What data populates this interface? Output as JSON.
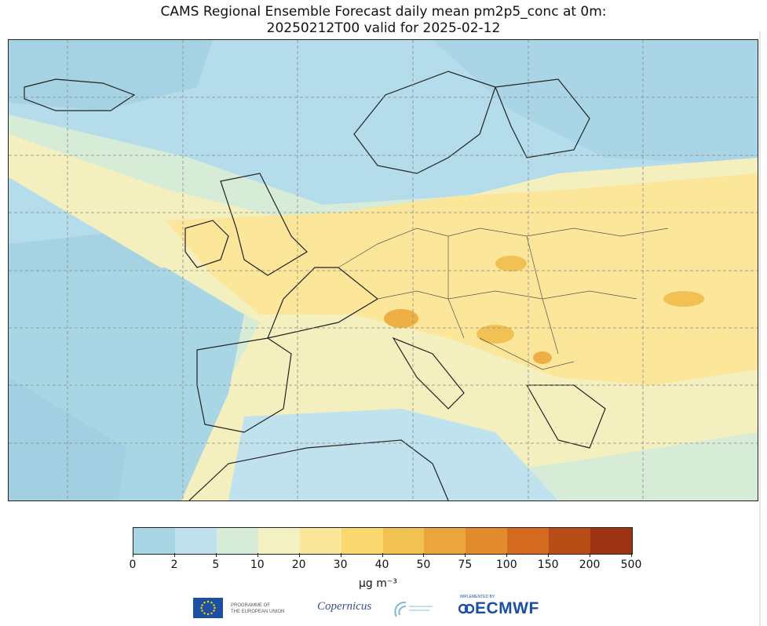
{
  "title": {
    "line1": "CAMS Regional Ensemble Forecast daily mean pm2p5_conc at 0m:",
    "line2": "20250212T00 valid for 2025-02-12"
  },
  "map": {
    "variable": "pm2p5_conc",
    "region": "Europe",
    "gridlines": true
  },
  "colorbar": {
    "ticks": [
      "0",
      "2",
      "5",
      "10",
      "20",
      "30",
      "40",
      "50",
      "75",
      "100",
      "150",
      "200",
      "500"
    ],
    "colors": [
      "#a9d6e5",
      "#bfe2ee",
      "#d7ecd9",
      "#f3f1c2",
      "#fbe79a",
      "#f9d86f",
      "#f1c152",
      "#eaa53d",
      "#e18a2e",
      "#d36a20",
      "#b84c16",
      "#9c3312",
      "#7c2212"
    ],
    "unit": "µg m⁻³"
  },
  "logos": {
    "eu_text_line1": "PROGRAMME OF",
    "eu_text_line2": "THE EUROPEAN UNION",
    "copernicus": "Copernicus",
    "ecmwf_pre": "IMPLEMENTED BY",
    "ecmwf": "ECMWF"
  }
}
